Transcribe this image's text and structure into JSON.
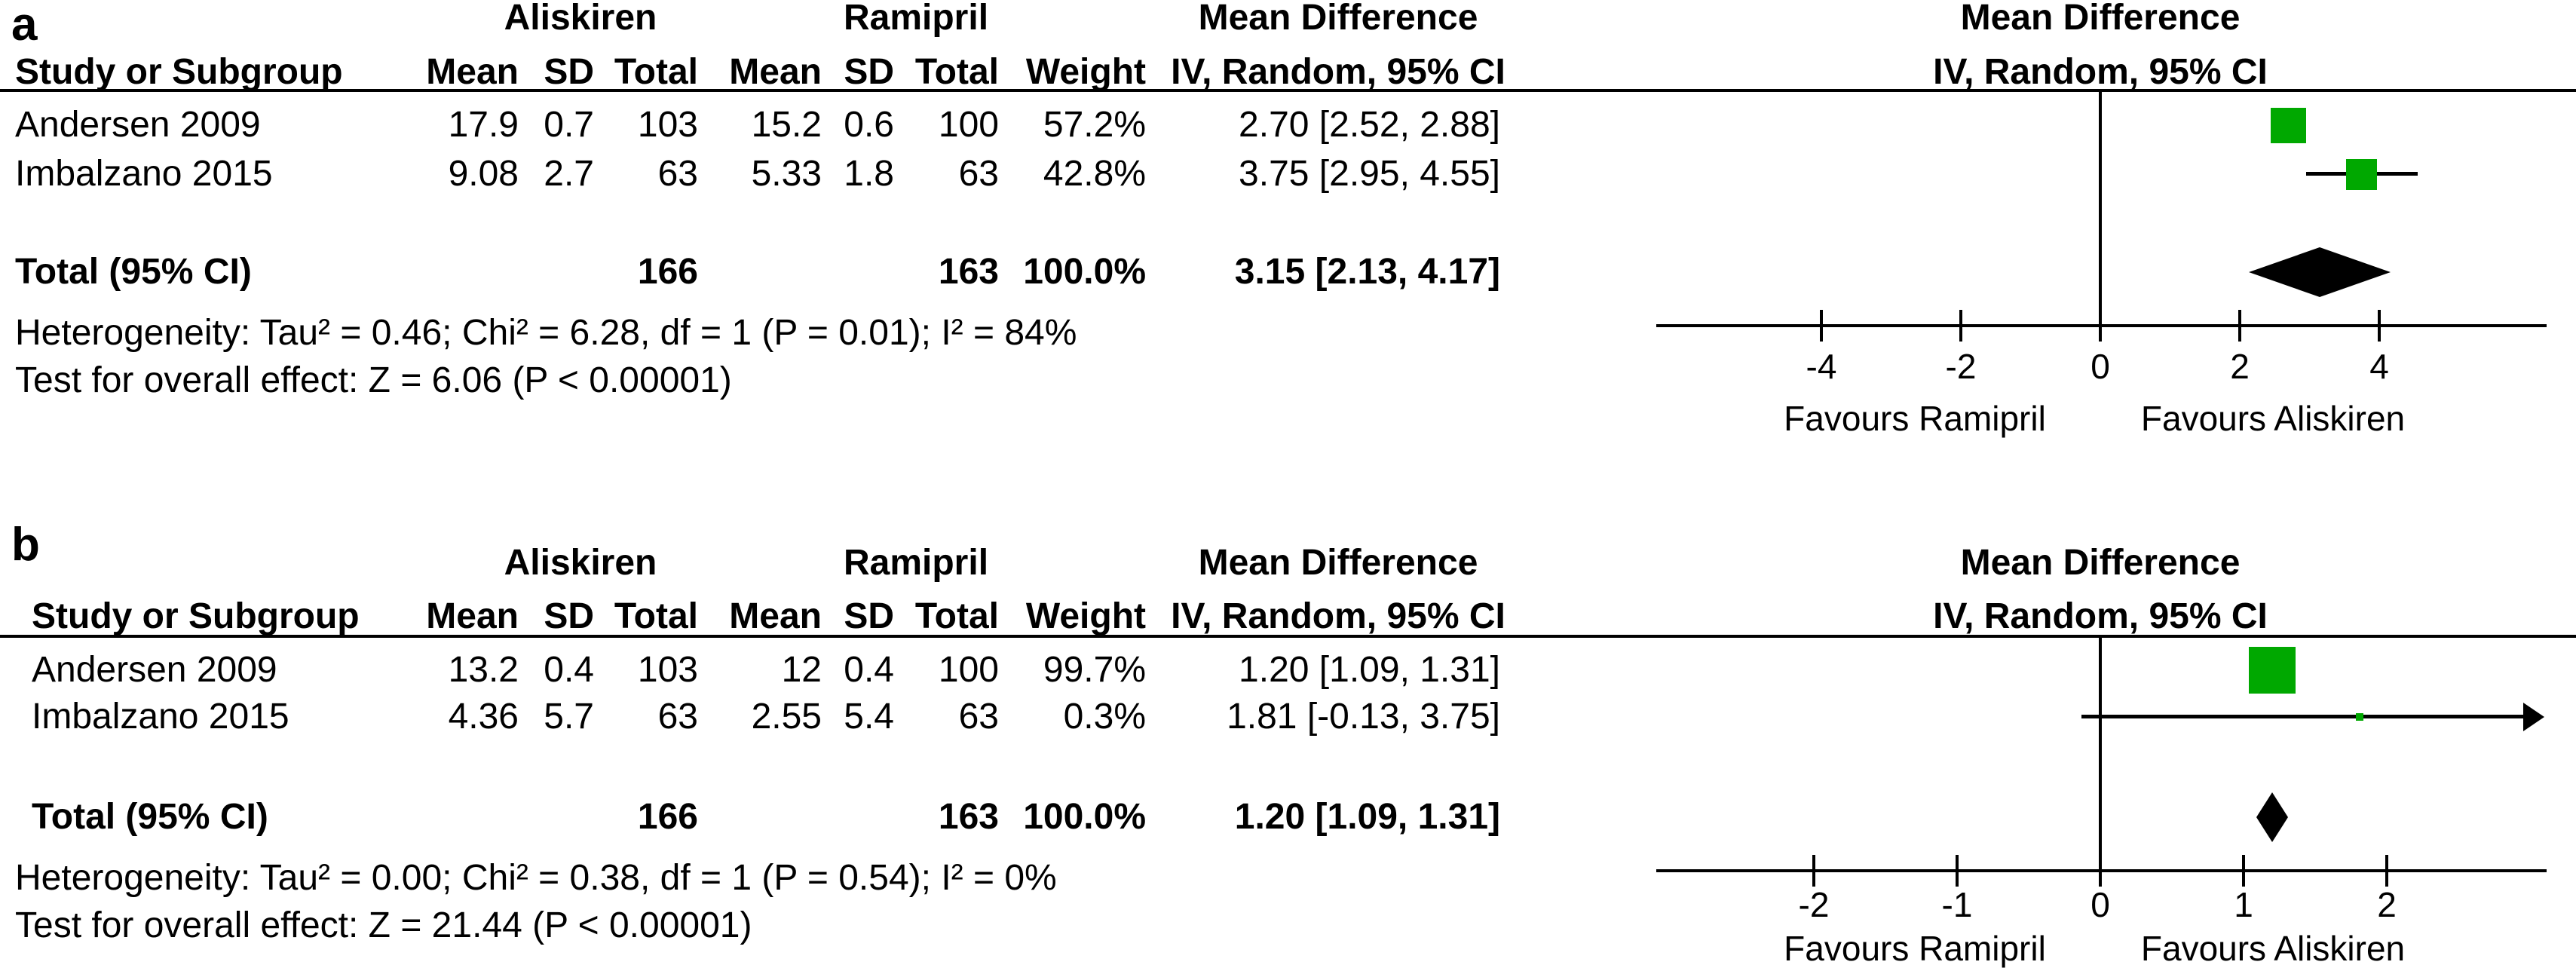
{
  "colors": {
    "marker_green": "#00a800",
    "line_black": "#000000"
  },
  "chart_data": [
    {
      "type": "forest",
      "panel_label": "a",
      "group1_header": "Aliskiren",
      "group2_header": "Ramipril",
      "effect_header": "Mean Difference",
      "method_header": "IV, Random, 95% CI",
      "study_col_header": "Study or Subgroup",
      "mean_header": "Mean",
      "sd_header": "SD",
      "total_header": "Total",
      "weight_header": "Weight",
      "studies": [
        {
          "name": "Andersen 2009",
          "mean1": "17.9",
          "sd1": "0.7",
          "total1": "103",
          "mean2": "15.2",
          "sd2": "0.6",
          "total2": "100",
          "weight": "57.2%",
          "weight_pct": 57.2,
          "ci_text": "2.70 [2.52, 2.88]",
          "est": 2.7,
          "lo": 2.52,
          "hi": 2.88
        },
        {
          "name": "Imbalzano 2015",
          "mean1": "9.08",
          "sd1": "2.7",
          "total1": "63",
          "mean2": "5.33",
          "sd2": "1.8",
          "total2": "63",
          "weight": "42.8%",
          "weight_pct": 42.8,
          "ci_text": "3.75 [2.95, 4.55]",
          "est": 3.75,
          "lo": 2.95,
          "hi": 4.55
        }
      ],
      "total_row": {
        "label": "Total (95% CI)",
        "total1": "166",
        "total2": "163",
        "weight": "100.0%",
        "ci_text": "3.15 [2.13, 4.17]",
        "est": 3.15,
        "lo": 2.13,
        "hi": 4.17
      },
      "heterogeneity_text": "Heterogeneity: Tau² = 0.46; Chi² = 6.28, df = 1 (P = 0.01); I² = 84%",
      "overall_effect_text": "Test for overall effect: Z = 6.06 (P < 0.00001)",
      "xticks": [
        -4,
        -2,
        0,
        2,
        4
      ],
      "xlim": [
        -6.4,
        6.4
      ],
      "favours_left": "Favours Ramipril",
      "favours_right": "Favours Aliskiren"
    },
    {
      "type": "forest",
      "panel_label": "b",
      "group1_header": "Aliskiren",
      "group2_header": "Ramipril",
      "effect_header": "Mean Difference",
      "method_header": "IV, Random, 95% CI",
      "study_col_header": "Study or Subgroup",
      "mean_header": "Mean",
      "sd_header": "SD",
      "total_header": "Total",
      "weight_header": "Weight",
      "studies": [
        {
          "name": "Andersen 2009",
          "mean1": "13.2",
          "sd1": "0.4",
          "total1": "103",
          "mean2": "12",
          "sd2": "0.4",
          "total2": "100",
          "weight": "99.7%",
          "weight_pct": 99.7,
          "ci_text": "1.20 [1.09, 1.31]",
          "est": 1.2,
          "lo": 1.09,
          "hi": 1.31
        },
        {
          "name": "Imbalzano 2015",
          "mean1": "4.36",
          "sd1": "5.7",
          "total1": "63",
          "mean2": "2.55",
          "sd2": "5.4",
          "total2": "63",
          "weight": "0.3%",
          "weight_pct": 0.3,
          "ci_text": "1.81 [-0.13, 3.75]",
          "est": 1.81,
          "lo": -0.13,
          "hi": 3.75
        }
      ],
      "total_row": {
        "label": "Total (95% CI)",
        "total1": "166",
        "total2": "163",
        "weight": "100.0%",
        "ci_text": "1.20 [1.09, 1.31]",
        "est": 1.2,
        "lo": 1.09,
        "hi": 1.31
      },
      "heterogeneity_text": "Heterogeneity: Tau² = 0.00; Chi² = 0.38, df = 1 (P = 0.54); I² = 0%",
      "overall_effect_text": "Test for overall effect: Z = 21.44 (P < 0.00001)",
      "xticks": [
        -2,
        -1,
        0,
        1,
        2
      ],
      "xlim": [
        -3.1,
        3.1
      ],
      "favours_left": "Favours Ramipril",
      "favours_right": "Favours Aliskiren"
    }
  ]
}
